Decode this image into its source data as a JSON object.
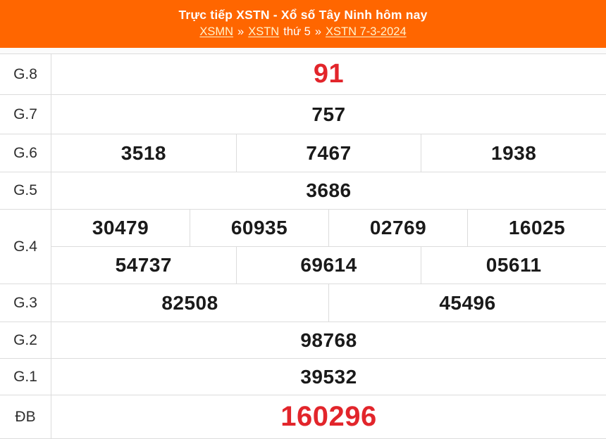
{
  "header": {
    "title": "Trực tiếp XSTN - Xổ số Tây Ninh hôm nay",
    "breadcrumb": [
      {
        "text": "XSMN",
        "type": "link"
      },
      {
        "text": "»",
        "type": "separator"
      },
      {
        "text": "XSTN",
        "type": "link"
      },
      {
        "text": "thứ 5",
        "type": "text"
      },
      {
        "text": "»",
        "type": "separator"
      },
      {
        "text": "XSTN 7-3-2024",
        "type": "link"
      }
    ]
  },
  "results_table": {
    "rows": [
      {
        "id": "g8",
        "label": "G.8",
        "accent": true,
        "groups": [
          [
            "91"
          ]
        ]
      },
      {
        "id": "g7",
        "label": "G.7",
        "accent": false,
        "groups": [
          [
            "757"
          ]
        ]
      },
      {
        "id": "g6",
        "label": "G.6",
        "accent": false,
        "groups": [
          [
            "3518",
            "7467",
            "1938"
          ]
        ]
      },
      {
        "id": "g5",
        "label": "G.5",
        "accent": false,
        "groups": [
          [
            "3686"
          ]
        ]
      },
      {
        "id": "g4",
        "label": "G.4",
        "accent": false,
        "groups": [
          [
            "30479",
            "60935",
            "02769",
            "16025"
          ],
          [
            "54737",
            "69614",
            "05611"
          ]
        ]
      },
      {
        "id": "g3",
        "label": "G.3",
        "accent": false,
        "groups": [
          [
            "82508",
            "45496"
          ]
        ]
      },
      {
        "id": "g2",
        "label": "G.2",
        "accent": false,
        "groups": [
          [
            "98768"
          ]
        ]
      },
      {
        "id": "g1",
        "label": "G.1",
        "accent": false,
        "groups": [
          [
            "39532"
          ]
        ]
      },
      {
        "id": "db",
        "label": "ĐB",
        "accent": true,
        "groups": [
          [
            "160296"
          ]
        ]
      }
    ]
  },
  "colors": {
    "header_background": "#ff6600",
    "accent_red": "#e2252b",
    "link_color": "#fff3cd",
    "header_text": "#ffffff",
    "number_color": "#1a1a1a",
    "label_color": "#2e2e2e",
    "border_color": "#dcdcdc"
  }
}
